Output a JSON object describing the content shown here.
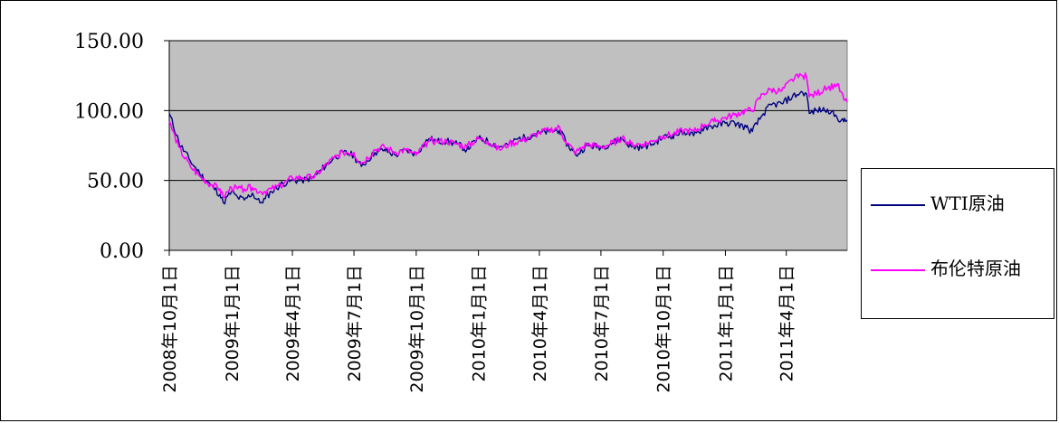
{
  "chart_data": {
    "type": "line",
    "title": "",
    "xlabel": "",
    "ylabel": "",
    "ylim": [
      0,
      150
    ],
    "yticks": [
      "0.00",
      "50.00",
      "100.00",
      "150.00"
    ],
    "xlim": [
      "2008-10-01",
      "2011-06-30"
    ],
    "xtick_labels": [
      {
        "date": "2008-10-01",
        "label": "2008年10月1日"
      },
      {
        "date": "2009-01-01",
        "label": "2009年1月1日"
      },
      {
        "date": "2009-04-01",
        "label": "2009年4月1日"
      },
      {
        "date": "2009-07-01",
        "label": "2009年7月1日"
      },
      {
        "date": "2009-10-01",
        "label": "2009年10月1日"
      },
      {
        "date": "2010-01-01",
        "label": "2010年1月1日"
      },
      {
        "date": "2010-04-01",
        "label": "2010年4月1日"
      },
      {
        "date": "2010-07-01",
        "label": "2010年7月1日"
      },
      {
        "date": "2010-10-01",
        "label": "2010年10月1日"
      },
      {
        "date": "2011-01-01",
        "label": "2011年1月1日"
      },
      {
        "date": "2011-04-01",
        "label": "2011年4月1日"
      }
    ],
    "grid": "horizontal",
    "plot_background": "#c0c0c0",
    "legend_position": "right",
    "series": [
      {
        "name": "WTI原油",
        "color": "#000080",
        "points": [
          [
            "2008-10-01",
            98
          ],
          [
            "2008-10-15",
            78
          ],
          [
            "2008-11-01",
            64
          ],
          [
            "2008-11-15",
            55
          ],
          [
            "2008-12-01",
            47
          ],
          [
            "2008-12-15",
            40
          ],
          [
            "2008-12-20",
            34
          ],
          [
            "2009-01-01",
            42
          ],
          [
            "2009-01-10",
            38
          ],
          [
            "2009-01-20",
            36
          ],
          [
            "2009-02-01",
            41
          ],
          [
            "2009-02-12",
            34
          ],
          [
            "2009-02-20",
            37
          ],
          [
            "2009-03-01",
            42
          ],
          [
            "2009-03-15",
            47
          ],
          [
            "2009-04-01",
            50
          ],
          [
            "2009-04-15",
            50
          ],
          [
            "2009-05-01",
            52
          ],
          [
            "2009-05-15",
            58
          ],
          [
            "2009-06-01",
            66
          ],
          [
            "2009-06-15",
            70
          ],
          [
            "2009-07-01",
            68
          ],
          [
            "2009-07-12",
            60
          ],
          [
            "2009-08-01",
            70
          ],
          [
            "2009-08-15",
            72
          ],
          [
            "2009-09-01",
            68
          ],
          [
            "2009-09-15",
            72
          ],
          [
            "2009-10-01",
            69
          ],
          [
            "2009-10-20",
            80
          ],
          [
            "2009-11-01",
            78
          ],
          [
            "2009-11-15",
            78
          ],
          [
            "2009-12-01",
            76
          ],
          [
            "2009-12-15",
            72
          ],
          [
            "2010-01-01",
            80
          ],
          [
            "2010-01-15",
            78
          ],
          [
            "2010-02-01",
            74
          ],
          [
            "2010-02-15",
            76
          ],
          [
            "2010-03-01",
            80
          ],
          [
            "2010-03-15",
            81
          ],
          [
            "2010-04-01",
            84
          ],
          [
            "2010-04-15",
            85
          ],
          [
            "2010-05-01",
            86
          ],
          [
            "2010-05-10",
            78
          ],
          [
            "2010-05-25",
            68
          ],
          [
            "2010-06-10",
            75
          ],
          [
            "2010-07-01",
            74
          ],
          [
            "2010-07-15",
            76
          ],
          [
            "2010-08-01",
            80
          ],
          [
            "2010-08-15",
            74
          ],
          [
            "2010-09-01",
            74
          ],
          [
            "2010-09-15",
            76
          ],
          [
            "2010-10-01",
            81
          ],
          [
            "2010-10-15",
            82
          ],
          [
            "2010-11-01",
            85
          ],
          [
            "2010-11-15",
            82
          ],
          [
            "2010-12-01",
            88
          ],
          [
            "2010-12-15",
            89
          ],
          [
            "2011-01-01",
            91
          ],
          [
            "2011-01-15",
            91
          ],
          [
            "2011-02-01",
            88
          ],
          [
            "2011-02-10",
            85
          ],
          [
            "2011-02-25",
            97
          ],
          [
            "2011-03-10",
            104
          ],
          [
            "2011-03-25",
            105
          ],
          [
            "2011-04-10",
            110
          ],
          [
            "2011-04-25",
            113
          ],
          [
            "2011-05-01",
            112
          ],
          [
            "2011-05-05",
            98
          ],
          [
            "2011-05-15",
            100
          ],
          [
            "2011-06-01",
            101
          ],
          [
            "2011-06-15",
            95
          ],
          [
            "2011-06-25",
            92
          ],
          [
            "2011-06-30",
            93
          ]
        ]
      },
      {
        "name": "布伦特原油",
        "color": "#ff00ff",
        "points": [
          [
            "2008-10-01",
            92
          ],
          [
            "2008-10-15",
            74
          ],
          [
            "2008-11-01",
            60
          ],
          [
            "2008-11-15",
            53
          ],
          [
            "2008-12-01",
            47
          ],
          [
            "2008-12-15",
            44
          ],
          [
            "2008-12-20",
            38
          ],
          [
            "2009-01-01",
            45
          ],
          [
            "2009-01-10",
            44
          ],
          [
            "2009-01-20",
            44
          ],
          [
            "2009-02-01",
            45
          ],
          [
            "2009-02-12",
            42
          ],
          [
            "2009-02-20",
            42
          ],
          [
            "2009-03-01",
            44
          ],
          [
            "2009-03-15",
            46
          ],
          [
            "2009-04-01",
            52
          ],
          [
            "2009-04-15",
            52
          ],
          [
            "2009-05-01",
            52
          ],
          [
            "2009-05-15",
            58
          ],
          [
            "2009-06-01",
            66
          ],
          [
            "2009-06-15",
            70
          ],
          [
            "2009-07-01",
            70
          ],
          [
            "2009-07-12",
            62
          ],
          [
            "2009-08-01",
            72
          ],
          [
            "2009-08-15",
            74
          ],
          [
            "2009-09-01",
            70
          ],
          [
            "2009-09-15",
            72
          ],
          [
            "2009-10-01",
            68
          ],
          [
            "2009-10-20",
            78
          ],
          [
            "2009-11-01",
            78
          ],
          [
            "2009-11-15",
            78
          ],
          [
            "2009-12-01",
            76
          ],
          [
            "2009-12-15",
            74
          ],
          [
            "2010-01-01",
            80
          ],
          [
            "2010-01-15",
            78
          ],
          [
            "2010-02-01",
            72
          ],
          [
            "2010-02-15",
            76
          ],
          [
            "2010-03-01",
            78
          ],
          [
            "2010-03-15",
            80
          ],
          [
            "2010-04-01",
            84
          ],
          [
            "2010-04-15",
            86
          ],
          [
            "2010-05-01",
            88
          ],
          [
            "2010-05-10",
            78
          ],
          [
            "2010-05-25",
            70
          ],
          [
            "2010-06-10",
            76
          ],
          [
            "2010-07-01",
            74
          ],
          [
            "2010-07-15",
            76
          ],
          [
            "2010-08-01",
            80
          ],
          [
            "2010-08-15",
            76
          ],
          [
            "2010-09-01",
            76
          ],
          [
            "2010-09-15",
            78
          ],
          [
            "2010-10-01",
            82
          ],
          [
            "2010-10-15",
            83
          ],
          [
            "2010-11-01",
            86
          ],
          [
            "2010-11-15",
            85
          ],
          [
            "2010-12-01",
            90
          ],
          [
            "2010-12-15",
            92
          ],
          [
            "2011-01-01",
            95
          ],
          [
            "2011-01-15",
            97
          ],
          [
            "2011-02-01",
            100
          ],
          [
            "2011-02-10",
            100
          ],
          [
            "2011-02-25",
            112
          ],
          [
            "2011-03-10",
            115
          ],
          [
            "2011-03-25",
            114
          ],
          [
            "2011-04-10",
            122
          ],
          [
            "2011-04-25",
            125
          ],
          [
            "2011-05-01",
            124
          ],
          [
            "2011-05-05",
            110
          ],
          [
            "2011-05-15",
            112
          ],
          [
            "2011-06-01",
            116
          ],
          [
            "2011-06-15",
            119
          ],
          [
            "2011-06-25",
            108
          ],
          [
            "2011-06-30",
            106
          ]
        ]
      }
    ]
  }
}
